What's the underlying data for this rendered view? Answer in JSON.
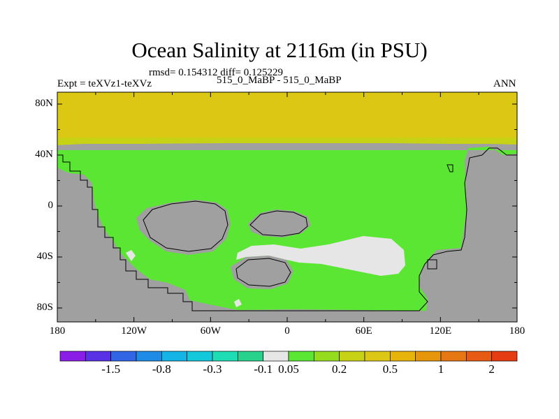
{
  "title": "Ocean Salinity at 2116m (in PSU)",
  "stats": "rmsd= 0.154312 diff= 0.125229",
  "experiment": "Expt = teXVz1-teXVz",
  "comparison": "515_0_MaBP - 515_0_MaBP",
  "period": "ANN",
  "y_axis": {
    "ticks": [
      {
        "label": "80N",
        "lat": 80
      },
      {
        "label": "40N",
        "lat": 40
      },
      {
        "label": "0",
        "lat": 0
      },
      {
        "label": "40S",
        "lat": -40
      },
      {
        "label": "80S",
        "lat": -80
      }
    ]
  },
  "x_axis": {
    "ticks": [
      {
        "label": "180",
        "lon": -180
      },
      {
        "label": "120W",
        "lon": -120
      },
      {
        "label": "60W",
        "lon": -60
      },
      {
        "label": "0",
        "lon": 0
      },
      {
        "label": "60E",
        "lon": 60
      },
      {
        "label": "120E",
        "lon": 120
      },
      {
        "label": "180",
        "lon": 180
      }
    ]
  },
  "colorbar": {
    "colors": [
      "#8a1ee6",
      "#5a32e6",
      "#3264e6",
      "#1e8ce6",
      "#14b4e6",
      "#14c8dc",
      "#1edcb4",
      "#28d28c",
      "#e6e6e6",
      "#5ae632",
      "#96dc1e",
      "#c8d214",
      "#dcc814",
      "#e6b40a",
      "#e6960a",
      "#e67814",
      "#e65a14",
      "#e63c14"
    ],
    "labels": [
      "-1.5",
      "-0.8",
      "-0.3",
      "-0.1",
      "0.05",
      "0.2",
      "0.5",
      "1",
      "2"
    ]
  },
  "colors": {
    "land": "#a0a0a0",
    "ocean_main": "#5ae632",
    "north_cap": "#dcc814",
    "north_band": "#c8d214",
    "near_zero": "#e6e6e6"
  }
}
